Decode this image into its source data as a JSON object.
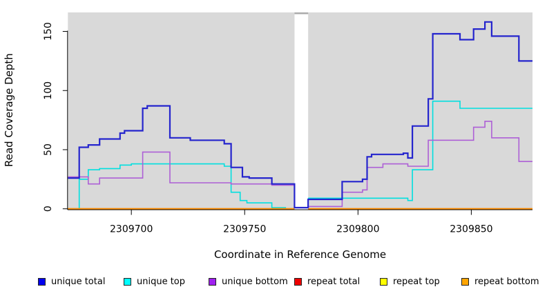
{
  "axes": {
    "x_label": "Coordinate in Reference Genome",
    "y_label": "Read Coverage Depth"
  },
  "chart_data": {
    "type": "line",
    "subtype": "step-after-coverage-plot",
    "title": "",
    "xlabel": "Coordinate in Reference Genome",
    "ylabel": "Read Coverage Depth",
    "xlim": [
      2309672,
      2309877
    ],
    "ylim": [
      0,
      166
    ],
    "x_ticks": [
      "2309700",
      "2309750",
      "2309800",
      "2309850"
    ],
    "x_tick_values": [
      2309700,
      2309750,
      2309800,
      2309850
    ],
    "y_ticks": [
      "0",
      "50",
      "100",
      "150"
    ],
    "y_tick_values": [
      0,
      50,
      100,
      150
    ],
    "grid": false,
    "plot_background": "#d9d9d9",
    "gap_region": {
      "x_start": 2309772,
      "x_end": 2309778,
      "fill": "#ffffff",
      "top_strip_color": "#ababab"
    },
    "legend_position": "bottom",
    "series": [
      {
        "name": "unique top",
        "color": "#00dfdf",
        "line_width": 1.6,
        "breaks_at_gap": true,
        "points": [
          [
            2309672,
            0
          ],
          [
            2309677,
            25
          ],
          [
            2309681,
            33
          ],
          [
            2309686,
            34
          ],
          [
            2309695,
            37
          ],
          [
            2309700,
            38
          ],
          [
            2309741,
            36
          ],
          [
            2309744,
            14
          ],
          [
            2309748,
            7
          ],
          [
            2309751,
            5
          ],
          [
            2309762,
            1
          ],
          [
            2309768,
            0
          ],
          [
            2309772,
            0
          ],
          [
            2309778,
            9
          ],
          [
            2309822,
            7
          ],
          [
            2309824,
            33
          ],
          [
            2309833,
            91
          ],
          [
            2309845,
            85
          ],
          [
            2309877,
            85
          ]
        ]
      },
      {
        "name": "unique bottom",
        "color": "#ad5fd6",
        "line_width": 1.6,
        "breaks_at_gap": true,
        "points": [
          [
            2309672,
            27
          ],
          [
            2309681,
            21
          ],
          [
            2309686,
            26
          ],
          [
            2309705,
            48
          ],
          [
            2309717,
            22
          ],
          [
            2309744,
            21
          ],
          [
            2309762,
            20
          ],
          [
            2309772,
            0
          ],
          [
            2309778,
            2
          ],
          [
            2309793,
            14
          ],
          [
            2309802,
            16
          ],
          [
            2309804,
            35
          ],
          [
            2309811,
            38
          ],
          [
            2309822,
            36
          ],
          [
            2309831,
            58
          ],
          [
            2309851,
            69
          ],
          [
            2309856,
            74
          ],
          [
            2309859,
            60
          ],
          [
            2309871,
            40
          ],
          [
            2309877,
            40
          ]
        ]
      },
      {
        "name": "repeat total",
        "color": "#dd0000",
        "line_width": 1.6,
        "breaks_at_gap": true,
        "points": [
          [
            2309672,
            0
          ],
          [
            2309877,
            0
          ]
        ]
      },
      {
        "name": "repeat top",
        "color": "#eeee00",
        "line_width": 1.6,
        "breaks_at_gap": true,
        "points": [
          [
            2309672,
            0
          ],
          [
            2309877,
            0
          ]
        ]
      },
      {
        "name": "repeat bottom",
        "color": "#ff8c00",
        "line_width": 1.8,
        "breaks_at_gap": true,
        "points": [
          [
            2309672,
            0
          ],
          [
            2309877,
            0
          ]
        ]
      },
      {
        "name": "unique total",
        "color": "#2424cd",
        "line_width": 2.2,
        "breaks_at_gap": false,
        "draw_above_gap": true,
        "points": [
          [
            2309672,
            26
          ],
          [
            2309677,
            52
          ],
          [
            2309681,
            54
          ],
          [
            2309686,
            59
          ],
          [
            2309695,
            64
          ],
          [
            2309697,
            66
          ],
          [
            2309705,
            85
          ],
          [
            2309707,
            87
          ],
          [
            2309717,
            60
          ],
          [
            2309726,
            58
          ],
          [
            2309741,
            55
          ],
          [
            2309744,
            35
          ],
          [
            2309749,
            27
          ],
          [
            2309752,
            26
          ],
          [
            2309762,
            21
          ],
          [
            2309772,
            1
          ],
          [
            2309778,
            8
          ],
          [
            2309793,
            23
          ],
          [
            2309802,
            25
          ],
          [
            2309804,
            44
          ],
          [
            2309806,
            46
          ],
          [
            2309820,
            47
          ],
          [
            2309822,
            43
          ],
          [
            2309824,
            70
          ],
          [
            2309831,
            93
          ],
          [
            2309833,
            148
          ],
          [
            2309845,
            143
          ],
          [
            2309851,
            152
          ],
          [
            2309856,
            158
          ],
          [
            2309859,
            146
          ],
          [
            2309871,
            125
          ],
          [
            2309877,
            125
          ]
        ]
      }
    ]
  },
  "legend": {
    "items": [
      {
        "label": "unique total",
        "color": "#0000ee"
      },
      {
        "label": "unique top",
        "color": "#00ffff"
      },
      {
        "label": "unique bottom",
        "color": "#a020f0"
      },
      {
        "label": "repeat total",
        "color": "#ee0000"
      },
      {
        "label": "repeat top",
        "color": "#ffff00"
      },
      {
        "label": "repeat bottom",
        "color": "#ffa500"
      }
    ]
  }
}
